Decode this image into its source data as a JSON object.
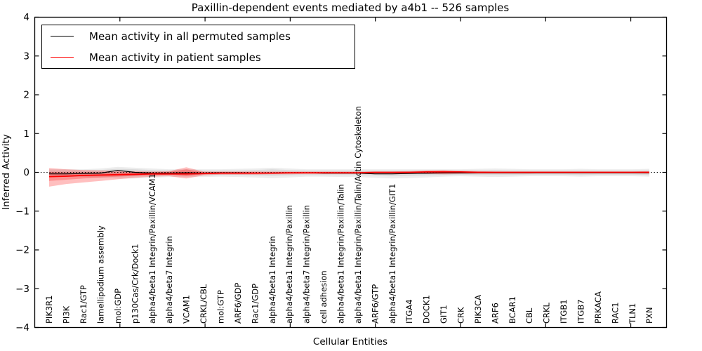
{
  "chart_data": {
    "type": "line",
    "title": "Paxillin-dependent events mediated by a4b1 -- 526 samples",
    "xlabel": "Cellular Entities",
    "ylabel": "Inferred Activity",
    "ylim": [
      -4,
      4
    ],
    "yticks": [
      -4,
      -3,
      -2,
      -1,
      0,
      1,
      2,
      3,
      4
    ],
    "xlim": [
      0,
      37.1
    ],
    "x_numeric_ticks": [
      5,
      10,
      15,
      20,
      25,
      30,
      35
    ],
    "grid": false,
    "legend_position": "upper left",
    "categories": [
      "PIK3R1",
      "PI3K",
      "Rac1/GTP",
      "lamellipodium assembly",
      "mol:GDP",
      "p130Cas/Crk/Dock1",
      "alpha4/beta1 Integrin/Paxillin/VCAM1",
      "alpha4/beta7 Integrin",
      "VCAM1",
      "CRKL/CBL",
      "mol:GTP",
      "ARF6/GDP",
      "Rac1/GDP",
      "alpha4/beta1 Integrin",
      "alpha4/beta1 Integrin/Paxillin",
      "alpha4/beta7 Integrin/Paxillin",
      "cell adhesion",
      "alpha4/beta1 Integrin/Paxillin/Talin",
      "alpha4/beta1 Integrin/Paxillin/Talin/Actin Cytoskeleton",
      "ARF6/GTP",
      "alpha4/beta1 Integrin/Paxillin/GIT1",
      "ITGA4",
      "DOCK1",
      "GIT1",
      "CRK",
      "PIK3CA",
      "ARF6",
      "BCAR1",
      "CBL",
      "CRKL",
      "ITGB1",
      "ITGB7",
      "PRKACA",
      "RAC1",
      "TLN1",
      "PXN"
    ],
    "series": [
      {
        "name": "Mean activity in all permuted samples",
        "color": "#000000",
        "values": [
          -0.04,
          -0.04,
          -0.03,
          -0.02,
          0.05,
          0.0,
          -0.02,
          -0.02,
          -0.01,
          -0.02,
          -0.01,
          -0.01,
          -0.02,
          -0.02,
          -0.01,
          -0.01,
          -0.02,
          -0.02,
          -0.02,
          -0.04,
          -0.04,
          -0.03,
          -0.02,
          -0.01,
          -0.01,
          -0.01,
          -0.01,
          -0.01,
          -0.01,
          -0.01,
          -0.01,
          -0.01,
          -0.01,
          -0.01,
          -0.01,
          -0.01
        ]
      },
      {
        "name": "Mean activity in patient samples",
        "color": "#ff0000",
        "values": [
          -0.11,
          -0.1,
          -0.08,
          -0.07,
          -0.06,
          -0.05,
          -0.04,
          -0.04,
          -0.04,
          -0.03,
          -0.02,
          -0.02,
          -0.02,
          -0.02,
          -0.01,
          -0.01,
          -0.01,
          -0.01,
          -0.01,
          0.0,
          0.0,
          0.0,
          0.01,
          0.01,
          0.01,
          0.0,
          0.0,
          0.0,
          0.0,
          0.0,
          0.0,
          0.0,
          0.0,
          0.0,
          0.0,
          0.0
        ]
      }
    ],
    "reference_line": {
      "y": 0,
      "style": "dotted",
      "color": "#000000"
    },
    "bands": [
      {
        "name": "permuted-range-outer",
        "color": "#808080",
        "opacity": 0.14,
        "upper": [
          0.08,
          0.08,
          0.08,
          0.1,
          0.14,
          0.12,
          0.1,
          0.08,
          0.08,
          0.08,
          0.08,
          0.09,
          0.1,
          0.12,
          0.1,
          0.08,
          0.08,
          0.08,
          0.08,
          0.08,
          0.08,
          0.08,
          0.08,
          0.08,
          0.08,
          0.09,
          0.1,
          0.09,
          0.08,
          0.08,
          0.08,
          0.09,
          0.08,
          0.08,
          0.08,
          0.09
        ],
        "lower": [
          -0.12,
          -0.12,
          -0.12,
          -0.14,
          -0.16,
          -0.16,
          -0.14,
          -0.12,
          -0.12,
          -0.12,
          -0.11,
          -0.12,
          -0.13,
          -0.15,
          -0.13,
          -0.11,
          -0.11,
          -0.12,
          -0.12,
          -0.14,
          -0.16,
          -0.15,
          -0.13,
          -0.11,
          -0.1,
          -0.11,
          -0.12,
          -0.11,
          -0.1,
          -0.1,
          -0.1,
          -0.11,
          -0.1,
          -0.1,
          -0.1,
          -0.11
        ]
      },
      {
        "name": "permuted-range-inner",
        "color": "#808080",
        "opacity": 0.16,
        "upper": [
          0.05,
          0.05,
          0.05,
          0.06,
          0.09,
          0.08,
          0.06,
          0.05,
          0.05,
          0.05,
          0.05,
          0.05,
          0.06,
          0.08,
          0.06,
          0.05,
          0.05,
          0.05,
          0.05,
          0.05,
          0.05,
          0.05,
          0.05,
          0.05,
          0.05,
          0.05,
          0.06,
          0.05,
          0.05,
          0.05,
          0.05,
          0.05,
          0.05,
          0.05,
          0.05,
          0.05
        ],
        "lower": [
          -0.07,
          -0.07,
          -0.07,
          -0.08,
          -0.1,
          -0.1,
          -0.08,
          -0.07,
          -0.07,
          -0.07,
          -0.07,
          -0.07,
          -0.08,
          -0.09,
          -0.08,
          -0.07,
          -0.07,
          -0.07,
          -0.07,
          -0.08,
          -0.1,
          -0.09,
          -0.08,
          -0.07,
          -0.06,
          -0.07,
          -0.07,
          -0.07,
          -0.06,
          -0.06,
          -0.06,
          -0.07,
          -0.06,
          -0.06,
          -0.06,
          -0.07
        ]
      },
      {
        "name": "patient-range-outer",
        "color": "#ff0000",
        "opacity": 0.25,
        "upper": [
          0.11,
          0.08,
          0.06,
          0.05,
          0.04,
          0.03,
          0.02,
          0.03,
          0.13,
          0.02,
          0.02,
          0.02,
          0.02,
          0.02,
          0.02,
          0.02,
          0.02,
          0.02,
          0.02,
          0.02,
          0.02,
          0.03,
          0.05,
          0.06,
          0.04,
          0.03,
          0.02,
          0.02,
          0.02,
          0.02,
          0.02,
          0.02,
          0.02,
          0.02,
          0.02,
          0.03
        ],
        "lower": [
          -0.37,
          -0.3,
          -0.26,
          -0.22,
          -0.18,
          -0.14,
          -0.11,
          -0.1,
          -0.16,
          -0.08,
          -0.06,
          -0.06,
          -0.06,
          -0.05,
          -0.05,
          -0.04,
          -0.04,
          -0.04,
          -0.04,
          -0.03,
          -0.03,
          -0.03,
          -0.04,
          -0.05,
          -0.04,
          -0.03,
          -0.03,
          -0.03,
          -0.03,
          -0.02,
          -0.02,
          -0.02,
          -0.02,
          -0.02,
          -0.02,
          -0.03
        ]
      },
      {
        "name": "patient-range-inner",
        "color": "#ff0000",
        "opacity": 0.25,
        "upper": [
          0.01,
          0.0,
          0.0,
          0.0,
          0.0,
          0.0,
          0.0,
          0.01,
          0.08,
          0.0,
          0.0,
          0.0,
          0.0,
          0.0,
          0.0,
          0.0,
          0.0,
          0.0,
          0.0,
          0.0,
          0.0,
          0.01,
          0.02,
          0.03,
          0.01,
          0.0,
          0.0,
          0.0,
          0.0,
          0.0,
          0.0,
          0.0,
          0.0,
          0.0,
          0.0,
          0.01
        ],
        "lower": [
          -0.22,
          -0.19,
          -0.16,
          -0.13,
          -0.11,
          -0.09,
          -0.07,
          -0.06,
          -0.1,
          -0.05,
          -0.04,
          -0.04,
          -0.04,
          -0.03,
          -0.03,
          -0.03,
          -0.03,
          -0.03,
          -0.03,
          -0.02,
          -0.02,
          -0.02,
          -0.03,
          -0.03,
          -0.02,
          -0.02,
          -0.02,
          -0.02,
          -0.02,
          -0.02,
          -0.02,
          -0.02,
          -0.02,
          -0.02,
          -0.02,
          -0.02
        ]
      }
    ]
  },
  "legend": {
    "items": [
      {
        "label": "Mean activity in all permuted samples",
        "color": "#000000"
      },
      {
        "label": "Mean activity in patient samples",
        "color": "#ff0000"
      }
    ]
  }
}
